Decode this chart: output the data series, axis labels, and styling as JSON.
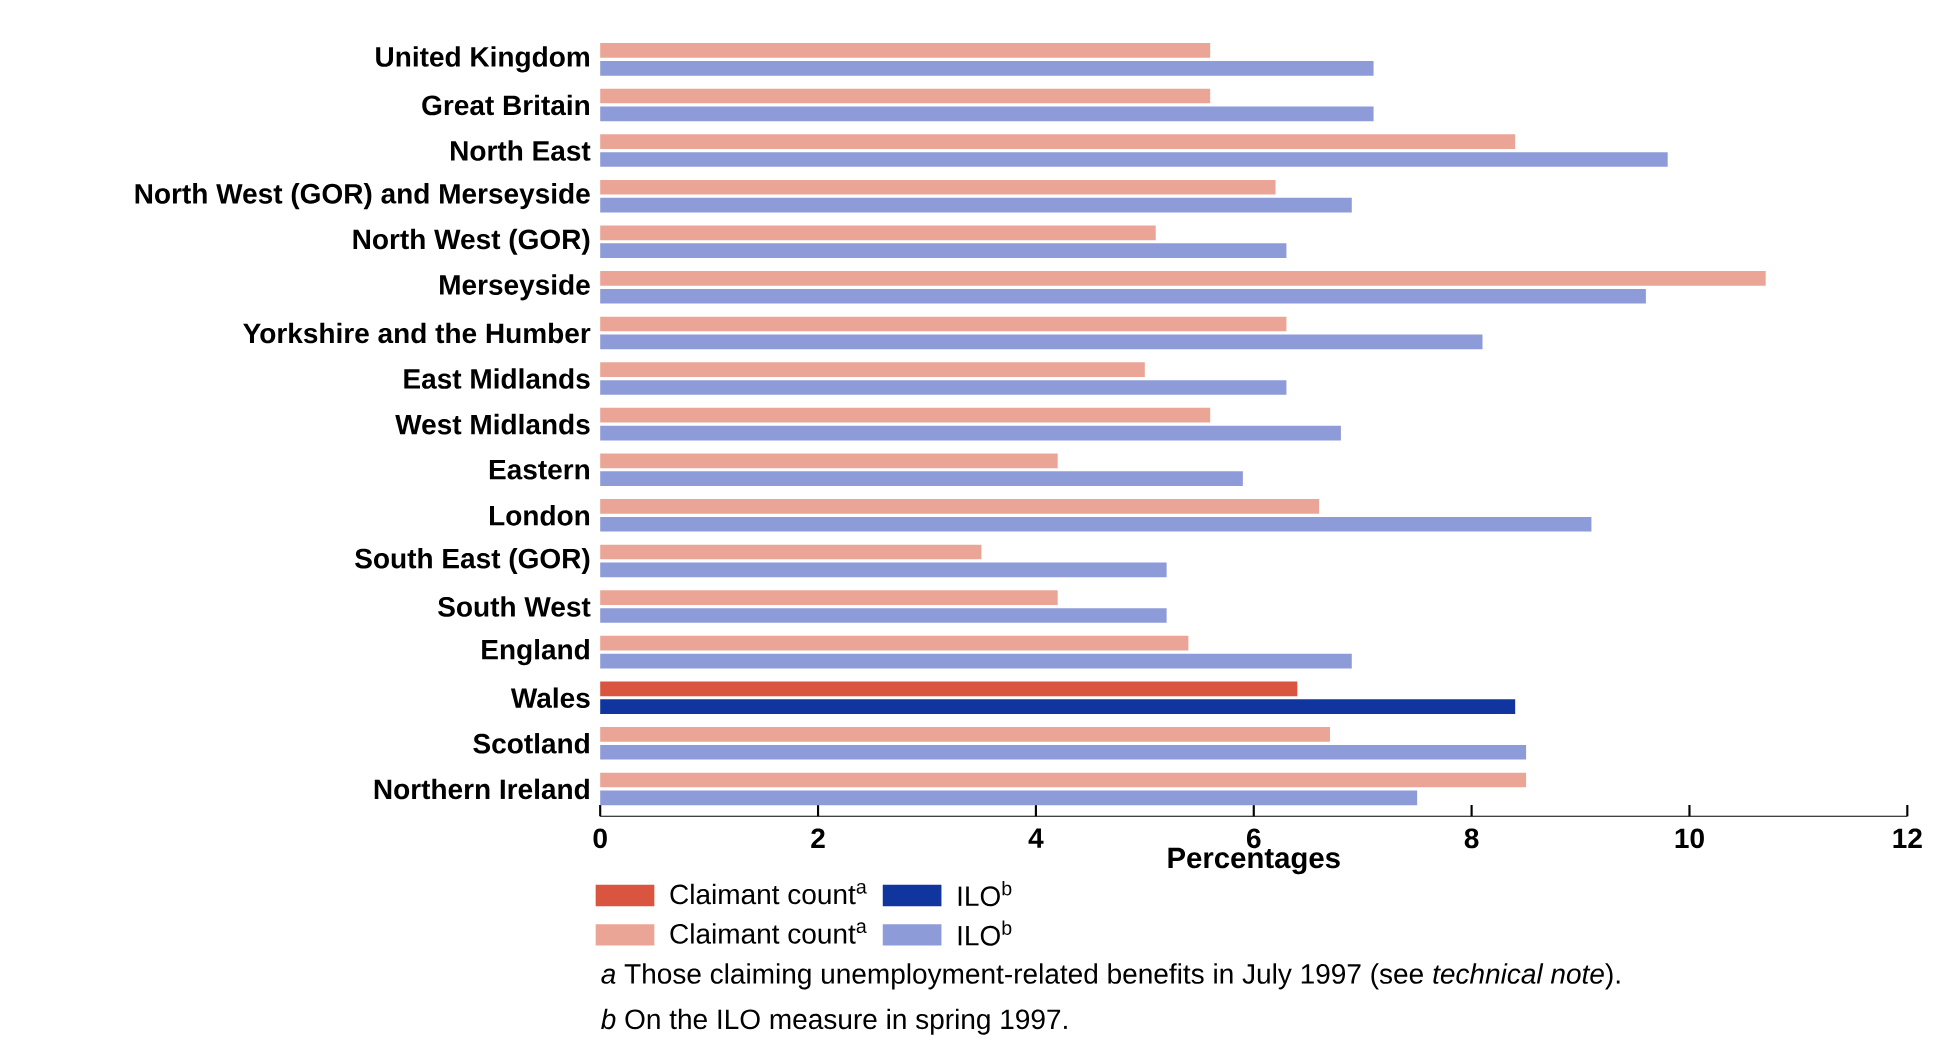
{
  "chart_data": {
    "type": "bar",
    "orientation": "horizontal",
    "xlabel": "Percentages",
    "categories": [
      "United Kingdom",
      "Great Britain",
      "North East",
      "North West (GOR) and Merseyside",
      "North West (GOR)",
      "Merseyside",
      "Yorkshire and the Humber",
      "East Midlands",
      "West Midlands",
      "Eastern",
      "London",
      "South East (GOR)",
      "South West",
      "England",
      "Wales",
      "Scotland",
      "Northern Ireland"
    ],
    "series": [
      {
        "name": "Claimant count$^{a}$",
        "color": "#d9553f",
        "values": [
          null,
          null,
          null,
          null,
          null,
          null,
          null,
          null,
          null,
          null,
          null,
          null,
          null,
          null,
          6.4,
          null,
          null
        ]
      },
      {
        "name": "Claimant count$^{a}$",
        "color": "#eba596",
        "values": [
          5.6,
          5.6,
          8.4,
          6.2,
          5.1,
          10.7,
          6.3,
          5.0,
          5.6,
          4.2,
          6.6,
          3.5,
          4.2,
          5.4,
          null,
          6.7,
          8.5
        ]
      },
      {
        "name": "ILO$^{b}$",
        "color": "#10359e",
        "values": [
          null,
          null,
          null,
          null,
          null,
          null,
          null,
          null,
          null,
          null,
          null,
          null,
          null,
          null,
          8.4,
          null,
          null
        ]
      },
      {
        "name": "ILO$^{b}$",
        "color": "#8e9bd9",
        "values": [
          7.1,
          7.1,
          9.8,
          6.9,
          6.3,
          9.6,
          8.1,
          6.3,
          6.8,
          5.9,
          9.1,
          5.2,
          5.2,
          6.9,
          null,
          8.5,
          7.5
        ]
      }
    ],
    "xlim": [
      0,
      12
    ],
    "xticks": [
      0,
      2,
      4,
      6,
      8,
      10,
      12
    ],
    "legend": "bottom left",
    "annotations": [
      "*a* Those claiming unemployment-related benefits in July 1997 (see *technical note*).",
      "*b* On the ILO measure in spring 1997."
    ]
  }
}
